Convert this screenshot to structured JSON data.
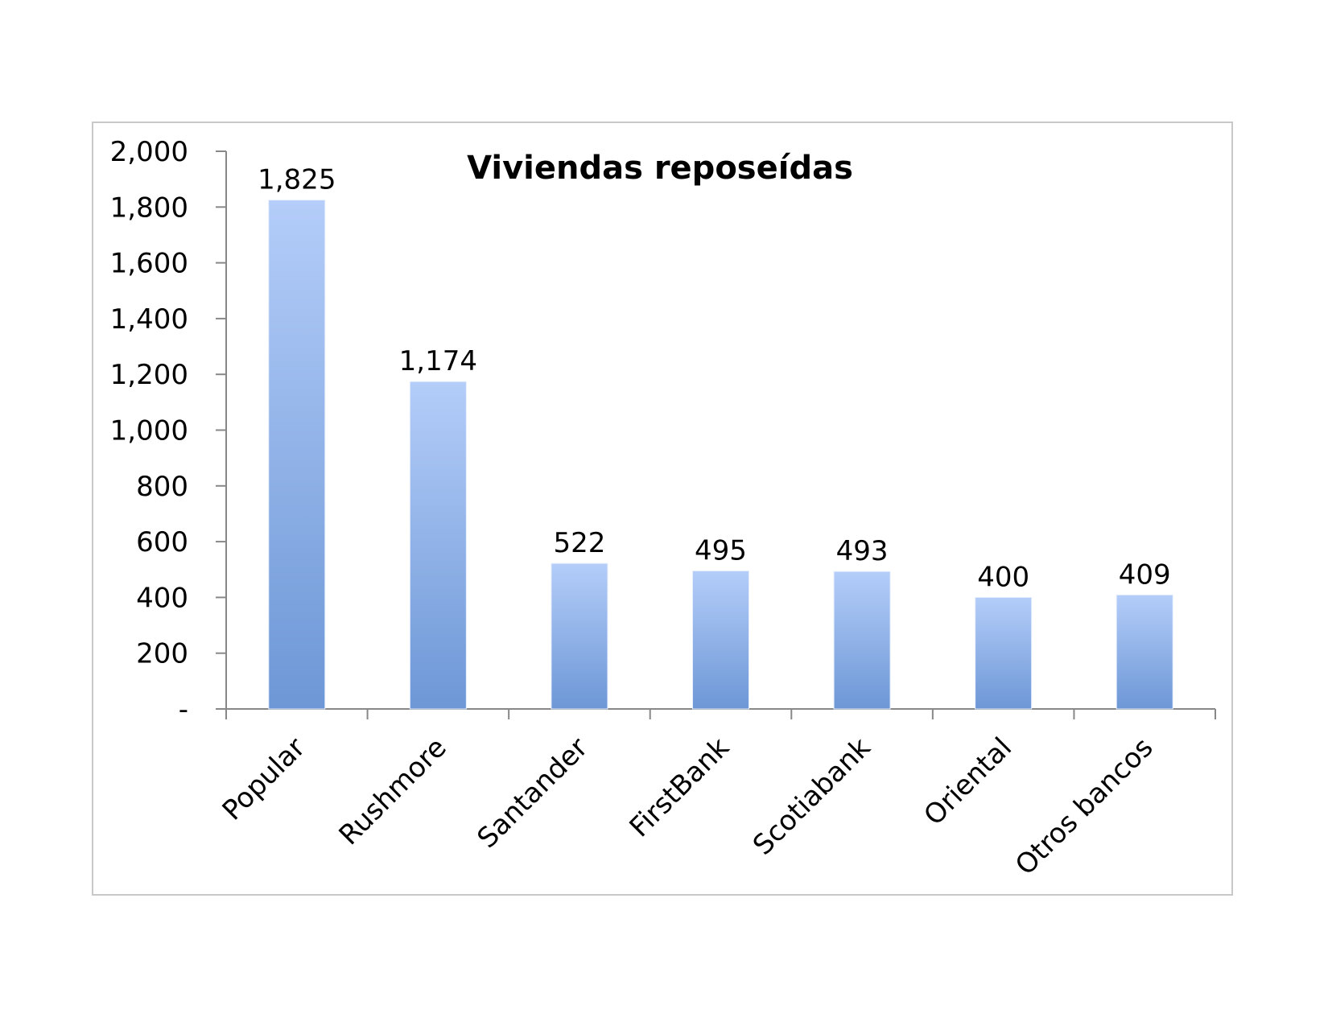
{
  "chart_data": {
    "type": "bar",
    "title": "Viviendas reposeídas",
    "xlabel": "",
    "ylabel": "",
    "categories": [
      "Popular",
      "Rushmore",
      "Santander",
      "FirstBank",
      "Scotiabank",
      "Oriental",
      "Otros bancos"
    ],
    "values": [
      1825,
      1174,
      522,
      495,
      493,
      400,
      409
    ],
    "value_labels": [
      "1,825",
      "1,174",
      "522",
      "495",
      "493",
      "400",
      "409"
    ],
    "ylim": [
      0,
      2000
    ],
    "yticks": [
      0,
      200,
      400,
      600,
      800,
      1000,
      1200,
      1400,
      1600,
      1800,
      2000
    ],
    "ytick_labels": [
      "-",
      "200",
      "400",
      "600",
      "800",
      "1,000",
      "1,200",
      "1,400",
      "1,600",
      "1,800",
      "2,000"
    ],
    "grid": false,
    "legend": "none",
    "colors": {
      "bar_top": "#b4cdf9",
      "bar_bottom": "#6d97d6",
      "axis": "#888888",
      "frame": "#c8c8c8"
    }
  }
}
